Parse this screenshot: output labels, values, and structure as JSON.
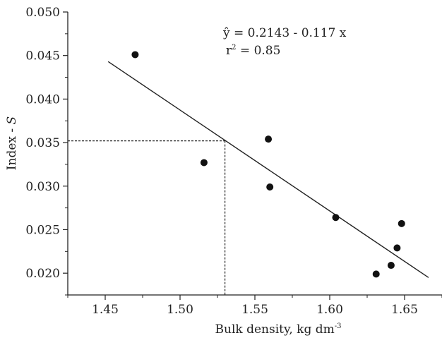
{
  "chart_data": {
    "type": "scatter",
    "xlabel": "Bulk density, kg dm",
    "xlabel_sup": "-3",
    "ylabel": "Index - ",
    "ylabel_italic": "S",
    "xlim": [
      1.425,
      1.675
    ],
    "ylim": [
      0.0175,
      0.05
    ],
    "x_ticks": [
      "1.45",
      "1.50",
      "1.55",
      "1.60",
      "1.65"
    ],
    "y_ticks": [
      "0.020",
      "0.025",
      "0.030",
      "0.035",
      "0.040",
      "0.045",
      "0.050"
    ],
    "points": [
      {
        "x": 1.47,
        "y": 0.0451
      },
      {
        "x": 1.516,
        "y": 0.0327
      },
      {
        "x": 1.559,
        "y": 0.0354
      },
      {
        "x": 1.56,
        "y": 0.0299
      },
      {
        "x": 1.604,
        "y": 0.0264
      },
      {
        "x": 1.631,
        "y": 0.0199
      },
      {
        "x": 1.641,
        "y": 0.0209
      },
      {
        "x": 1.645,
        "y": 0.0229
      },
      {
        "x": 1.648,
        "y": 0.0257
      }
    ],
    "regression": {
      "x_range": [
        1.452,
        1.666
      ],
      "y_at_start": 0.0443,
      "y_at_end": 0.0195,
      "equation": "ŷ = 0.2143 - 0.117 x",
      "r2_label": "r",
      "r2_sup": "2",
      "r2_value": " = 0.85"
    },
    "reference_point": {
      "x": 1.53,
      "y": 0.0352
    },
    "grid": false,
    "legend": "none",
    "colors": {
      "marker": "#111111",
      "line": "#222222",
      "axis": "#222222"
    }
  }
}
